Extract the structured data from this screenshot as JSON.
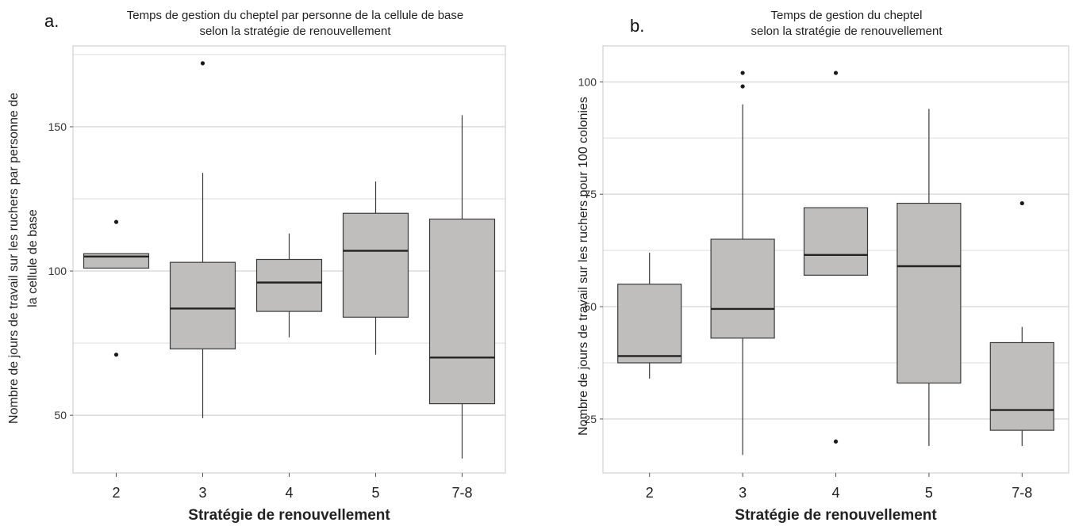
{
  "figure": {
    "panels": [
      {
        "letter": "a.",
        "title_lines": [
          "Temps de gestion du cheptel par personne de la cellule de base",
          "selon la stratégie de renouvellement"
        ],
        "ylabel_lines": [
          "Nombre de jours de travail sur les ruchers par personne de",
          "la cellule de base"
        ],
        "xlabel": "Stratégie de renouvellement"
      },
      {
        "letter": "b.",
        "title_lines": [
          "Temps de gestion du cheptel",
          "selon la stratégie de renouvellement"
        ],
        "ylabel_lines": [
          "Nombre de jours de travail sur les ruchers pour 100 colonies"
        ],
        "xlabel": "Stratégie de renouvellement"
      }
    ]
  },
  "colors": {
    "box_fill": "#bfbebd",
    "box_stroke": "#3a3a3a",
    "median": "#222222",
    "grid": "#dedede",
    "frame": "#d0d0d0",
    "outlier": "#1a1a1a"
  },
  "chart_data": [
    {
      "type": "boxplot",
      "title": "Temps de gestion du cheptel par personne de la cellule de base selon la stratégie de renouvellement",
      "xlabel": "Stratégie de renouvellement",
      "ylabel": "Nombre de jours de travail sur les ruchers par personne de la cellule de base",
      "ylim": [
        30,
        178
      ],
      "yticks": [
        50,
        100,
        150
      ],
      "grid": true,
      "categories": [
        "2",
        "3",
        "4",
        "5",
        "7-8"
      ],
      "boxes": [
        {
          "category": "2",
          "whisker_low": 101,
          "q1": 101,
          "median": 105,
          "q3": 106,
          "whisker_high": 106,
          "outliers": [
            117,
            71
          ]
        },
        {
          "category": "3",
          "whisker_low": 49,
          "q1": 73,
          "median": 87,
          "q3": 103,
          "whisker_high": 134,
          "outliers": [
            172
          ]
        },
        {
          "category": "4",
          "whisker_low": 77,
          "q1": 86,
          "median": 96,
          "q3": 104,
          "whisker_high": 113,
          "outliers": []
        },
        {
          "category": "5",
          "whisker_low": 71,
          "q1": 84,
          "median": 107,
          "q3": 120,
          "whisker_high": 131,
          "outliers": []
        },
        {
          "category": "7-8",
          "whisker_low": 35,
          "q1": 54,
          "median": 70,
          "q3": 118,
          "whisker_high": 154,
          "outliers": []
        }
      ]
    },
    {
      "type": "boxplot",
      "title": "Temps de gestion du cheptel selon la stratégie de renouvellement",
      "xlabel": "Stratégie de renouvellement",
      "ylabel": "Nombre de jours de travail sur les ruchers pour 100 colonies",
      "ylim": [
        13,
        108
      ],
      "yticks": [
        25,
        50,
        75,
        100
      ],
      "grid": true,
      "categories": [
        "2",
        "3",
        "4",
        "5",
        "7-8"
      ],
      "boxes": [
        {
          "category": "2",
          "whisker_low": 34,
          "q1": 37.5,
          "median": 39,
          "q3": 55,
          "whisker_high": 62,
          "outliers": []
        },
        {
          "category": "3",
          "whisker_low": 17,
          "q1": 43,
          "median": 49.5,
          "q3": 65,
          "whisker_high": 95,
          "outliers": [
            102,
            99
          ]
        },
        {
          "category": "4",
          "whisker_low": 57,
          "q1": 57,
          "median": 61.5,
          "q3": 72,
          "whisker_high": 72,
          "outliers": [
            102,
            20
          ]
        },
        {
          "category": "5",
          "whisker_low": 19,
          "q1": 33,
          "median": 59,
          "q3": 73,
          "whisker_high": 94,
          "outliers": []
        },
        {
          "category": "7-8",
          "whisker_low": 19,
          "q1": 22.5,
          "median": 27,
          "q3": 42,
          "whisker_high": 45.5,
          "outliers": [
            73
          ]
        }
      ]
    }
  ]
}
